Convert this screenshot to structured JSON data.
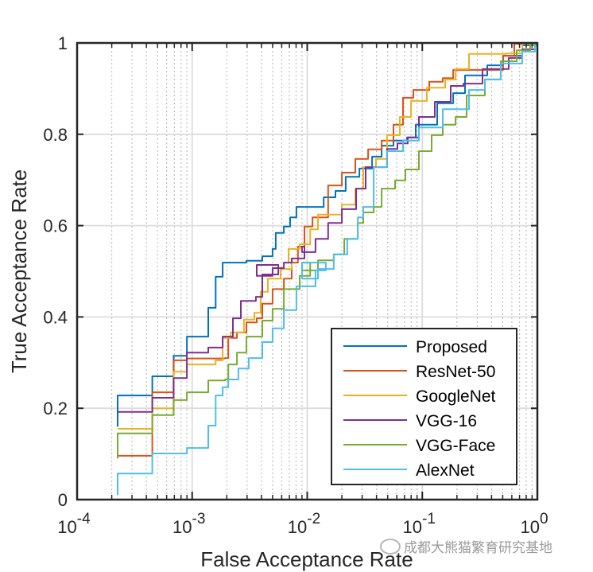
{
  "chart_data": {
    "type": "line",
    "title": "",
    "xlabel": "False Acceptance Rate",
    "ylabel": "True Acceptance Rate",
    "xscale": "log",
    "xlim": [
      0.0001,
      1
    ],
    "ylim": [
      0,
      1
    ],
    "grid": true,
    "minor_grid": true,
    "x_ticks": [
      {
        "value": 0.0001,
        "base": "10",
        "exp": "-4"
      },
      {
        "value": 0.001,
        "base": "10",
        "exp": "-3"
      },
      {
        "value": 0.01,
        "base": "10",
        "exp": "-2"
      },
      {
        "value": 0.1,
        "base": "10",
        "exp": "-1"
      },
      {
        "value": 1,
        "base": "10",
        "exp": "0"
      }
    ],
    "y_ticks": [
      {
        "value": 0,
        "label": "0"
      },
      {
        "value": 0.2,
        "label": "0.2"
      },
      {
        "value": 0.4,
        "label": "0.4"
      },
      {
        "value": 0.6,
        "label": "0.6"
      },
      {
        "value": 0.8,
        "label": "0.8"
      },
      {
        "value": 1,
        "label": "1"
      }
    ],
    "legend_position": "bottom-right",
    "series": [
      {
        "name": "Proposed",
        "color": "#0072BD",
        "points": [
          [
            0.000225,
            0.16
          ],
          [
            0.000225,
            0.228
          ],
          [
            0.00045,
            0.235
          ],
          [
            0.00045,
            0.27
          ],
          [
            0.00069,
            0.279
          ],
          [
            0.00069,
            0.315
          ],
          [
            0.0009,
            0.32
          ],
          [
            0.0009,
            0.357
          ],
          [
            0.00138,
            0.367
          ],
          [
            0.00138,
            0.42
          ],
          [
            0.0016,
            0.427
          ],
          [
            0.0016,
            0.488
          ],
          [
            0.00184,
            0.519
          ],
          [
            0.00296,
            0.523
          ],
          [
            0.00407,
            0.533
          ],
          [
            0.005,
            0.549
          ],
          [
            0.00533,
            0.584
          ],
          [
            0.00626,
            0.598
          ],
          [
            0.0071,
            0.618
          ],
          [
            0.00806,
            0.641
          ],
          [
            0.009,
            0.641
          ],
          [
            0.0139,
            0.662
          ],
          [
            0.0176,
            0.676
          ],
          [
            0.0216,
            0.707
          ],
          [
            0.0284,
            0.725
          ],
          [
            0.0366,
            0.751
          ],
          [
            0.0443,
            0.775
          ],
          [
            0.0562,
            0.786
          ],
          [
            0.0736,
            0.793
          ],
          [
            0.0877,
            0.821
          ],
          [
            0.1348,
            0.868
          ],
          [
            0.1854,
            0.89
          ],
          [
            0.235,
            0.929
          ],
          [
            0.367,
            0.951
          ],
          [
            0.504,
            0.972
          ],
          [
            0.739,
            0.995
          ],
          [
            1.0,
            1.0
          ]
        ]
      },
      {
        "name": "ResNet-50",
        "color": "#D95319",
        "points": [
          [
            0.000225,
            0.096
          ],
          [
            0.00045,
            0.101
          ],
          [
            0.00045,
            0.235
          ],
          [
            0.00069,
            0.242
          ],
          [
            0.00069,
            0.305
          ],
          [
            0.0009,
            0.309
          ],
          [
            0.00193,
            0.31
          ],
          [
            0.00206,
            0.354
          ],
          [
            0.00245,
            0.366
          ],
          [
            0.00296,
            0.388
          ],
          [
            0.00364,
            0.397
          ],
          [
            0.00407,
            0.429
          ],
          [
            0.005,
            0.461
          ],
          [
            0.00626,
            0.484
          ],
          [
            0.00733,
            0.519
          ],
          [
            0.0083,
            0.554
          ],
          [
            0.00946,
            0.598
          ],
          [
            0.0111,
            0.618
          ],
          [
            0.0152,
            0.688
          ],
          [
            0.02,
            0.716
          ],
          [
            0.0262,
            0.746
          ],
          [
            0.0338,
            0.767
          ],
          [
            0.0443,
            0.786
          ],
          [
            0.0562,
            0.821
          ],
          [
            0.068,
            0.88
          ],
          [
            0.0836,
            0.897
          ],
          [
            0.115,
            0.915
          ],
          [
            0.1507,
            0.923
          ],
          [
            0.1854,
            0.941
          ],
          [
            0.2985,
            0.941
          ],
          [
            0.504,
            0.972
          ],
          [
            0.63,
            0.998
          ],
          [
            1.0,
            1.0
          ]
        ]
      },
      {
        "name": "GoogleNet",
        "color": "#EDB120",
        "points": [
          [
            0.000225,
            0.155
          ],
          [
            0.00045,
            0.16
          ],
          [
            0.00045,
            0.2
          ],
          [
            0.00069,
            0.28
          ],
          [
            0.0009,
            0.284
          ],
          [
            0.0009,
            0.296
          ],
          [
            0.0016,
            0.305
          ],
          [
            0.00184,
            0.354
          ],
          [
            0.00216,
            0.366
          ],
          [
            0.00282,
            0.394
          ],
          [
            0.00347,
            0.409
          ],
          [
            0.00394,
            0.455
          ],
          [
            0.00455,
            0.484
          ],
          [
            0.00587,
            0.505
          ],
          [
            0.00733,
            0.519
          ],
          [
            0.00688,
            0.549
          ],
          [
            0.0086,
            0.559
          ],
          [
            0.0106,
            0.592
          ],
          [
            0.0124,
            0.624
          ],
          [
            0.02,
            0.646
          ],
          [
            0.0262,
            0.681
          ],
          [
            0.0307,
            0.728
          ],
          [
            0.0396,
            0.746
          ],
          [
            0.0494,
            0.798
          ],
          [
            0.0638,
            0.838
          ],
          [
            0.0798,
            0.873
          ],
          [
            0.1096,
            0.902
          ],
          [
            0.158,
            0.92
          ],
          [
            0.1945,
            0.943
          ],
          [
            0.2545,
            0.976
          ],
          [
            0.538,
            0.977
          ],
          [
            0.739,
            0.998
          ],
          [
            1.0,
            1.0
          ]
        ]
      },
      {
        "name": "VGG-16",
        "color": "#7E2F8E",
        "points": [
          [
            0.000225,
            0.192
          ],
          [
            0.00045,
            0.199
          ],
          [
            0.00045,
            0.223
          ],
          [
            0.00069,
            0.23
          ],
          [
            0.00069,
            0.266
          ],
          [
            0.0009,
            0.272
          ],
          [
            0.0009,
            0.322
          ],
          [
            0.00138,
            0.333
          ],
          [
            0.00184,
            0.357
          ],
          [
            0.00226,
            0.397
          ],
          [
            0.00265,
            0.435
          ],
          [
            0.00358,
            0.444
          ],
          [
            0.00407,
            0.493
          ],
          [
            0.0056,
            0.514
          ],
          [
            0.00364,
            0.49
          ],
          [
            0.005,
            0.507
          ],
          [
            0.00626,
            0.519
          ],
          [
            0.00733,
            0.528
          ],
          [
            0.00946,
            0.554
          ],
          [
            0.009,
            0.542
          ],
          [
            0.0118,
            0.571
          ],
          [
            0.0152,
            0.606
          ],
          [
            0.02,
            0.636
          ],
          [
            0.0266,
            0.681
          ],
          [
            0.0322,
            0.728
          ],
          [
            0.0494,
            0.768
          ],
          [
            0.0608,
            0.78
          ],
          [
            0.0748,
            0.793
          ],
          [
            0.0935,
            0.838
          ],
          [
            0.1285,
            0.871
          ],
          [
            0.1767,
            0.906
          ],
          [
            0.2277,
            0.911
          ],
          [
            0.3336,
            0.943
          ],
          [
            0.564,
            0.967
          ],
          [
            0.739,
            0.986
          ],
          [
            0.953,
            0.998
          ],
          [
            1.0,
            1.0
          ]
        ]
      },
      {
        "name": "VGG-Face",
        "color": "#77AC30",
        "points": [
          [
            0.000225,
            0.09
          ],
          [
            0.000225,
            0.145
          ],
          [
            0.00045,
            0.148
          ],
          [
            0.00045,
            0.185
          ],
          [
            0.00069,
            0.193
          ],
          [
            0.00069,
            0.218
          ],
          [
            0.0009,
            0.223
          ],
          [
            0.0009,
            0.235
          ],
          [
            0.00138,
            0.246
          ],
          [
            0.00138,
            0.261
          ],
          [
            0.00193,
            0.263
          ],
          [
            0.00206,
            0.296
          ],
          [
            0.00245,
            0.322
          ],
          [
            0.00296,
            0.357
          ],
          [
            0.00407,
            0.392
          ],
          [
            0.005,
            0.418
          ],
          [
            0.00626,
            0.461
          ],
          [
            0.0086,
            0.49
          ],
          [
            0.0106,
            0.519
          ],
          [
            0.009,
            0.502
          ],
          [
            0.0124,
            0.524
          ],
          [
            0.017,
            0.537
          ],
          [
            0.021,
            0.571
          ],
          [
            0.0275,
            0.606
          ],
          [
            0.0307,
            0.629
          ],
          [
            0.0378,
            0.641
          ],
          [
            0.0443,
            0.681
          ],
          [
            0.058,
            0.699
          ],
          [
            0.0713,
            0.723
          ],
          [
            0.0935,
            0.763
          ],
          [
            0.1205,
            0.798
          ],
          [
            0.1507,
            0.821
          ],
          [
            0.1945,
            0.838
          ],
          [
            0.2427,
            0.885
          ],
          [
            0.35,
            0.92
          ],
          [
            0.481,
            0.96
          ],
          [
            0.661,
            0.984
          ],
          [
            0.867,
            0.995
          ],
          [
            1.0,
            1.0
          ]
        ]
      },
      {
        "name": "AlexNet",
        "color": "#4DBEEE",
        "points": [
          [
            0.000225,
            0.01
          ],
          [
            0.000225,
            0.057
          ],
          [
            0.00045,
            0.063
          ],
          [
            0.00045,
            0.101
          ],
          [
            0.0009,
            0.113
          ],
          [
            0.00138,
            0.113
          ],
          [
            0.00138,
            0.162
          ],
          [
            0.0016,
            0.171
          ],
          [
            0.0016,
            0.228
          ],
          [
            0.00184,
            0.246
          ],
          [
            0.00206,
            0.263
          ],
          [
            0.00252,
            0.287
          ],
          [
            0.0031,
            0.31
          ],
          [
            0.00407,
            0.345
          ],
          [
            0.005,
            0.375
          ],
          [
            0.00626,
            0.415
          ],
          [
            0.00806,
            0.467
          ],
          [
            0.0118,
            0.502
          ],
          [
            0.0145,
            0.519
          ],
          [
            0.009,
            0.484
          ],
          [
            0.0124,
            0.505
          ],
          [
            0.017,
            0.537
          ],
          [
            0.0223,
            0.571
          ],
          [
            0.0275,
            0.618
          ],
          [
            0.0307,
            0.641
          ],
          [
            0.0378,
            0.728
          ],
          [
            0.0494,
            0.763
          ],
          [
            0.068,
            0.786
          ],
          [
            0.0935,
            0.815
          ],
          [
            0.1507,
            0.855
          ],
          [
            0.2172,
            0.855
          ],
          [
            0.2545,
            0.897
          ],
          [
            0.35,
            0.92
          ],
          [
            0.481,
            0.955
          ],
          [
            0.739,
            0.981
          ],
          [
            0.953,
            0.998
          ],
          [
            1.0,
            1.0
          ]
        ]
      }
    ]
  },
  "watermark": {
    "text": "成都大熊猫繁育研究基地"
  }
}
